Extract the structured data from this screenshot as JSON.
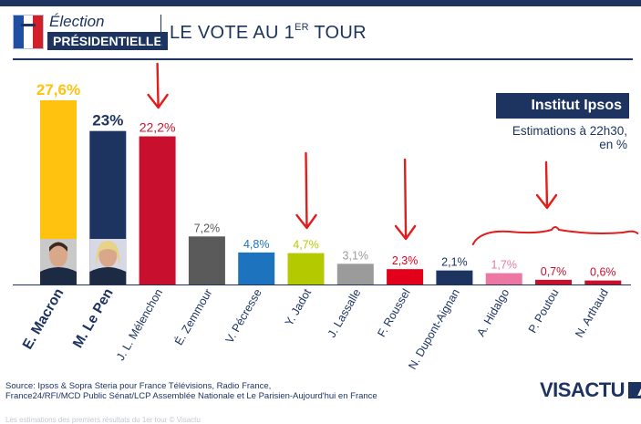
{
  "header": {
    "election": "Élection",
    "presidentielle": "PRÉSIDENTIELLE",
    "title_main": "LE VOTE AU 1",
    "title_sup": "ER",
    "title_end": " TOUR"
  },
  "institute": {
    "name": "Institut Ipsos",
    "estimate_line1": "Estimations à 22h30,",
    "estimate_line2": "en %"
  },
  "footer": {
    "source_line1": "Source: Ipsos & Sopra Steria pour France Télévisions, Radio France,",
    "source_line2": "France24/RFI/MCD Public Sénat/LCP Assemblée Nationale et Le Parisien-Aujourd'hui en France",
    "faint_line": "Les estimations des premiers résultats du 1er tour © Visactu",
    "brand": "VISACTU"
  },
  "chart_data": {
    "type": "bar",
    "title": "LE VOTE AU 1ER TOUR",
    "subtitle": "Estimations à 22h30, en %",
    "ylabel": "%",
    "ylim": [
      0,
      27.6
    ],
    "grid": false,
    "categories": [
      "E. Macron",
      "M. Le Pen",
      "J. L. Mélenchon",
      "É. Zemmour",
      "V. Pécresse",
      "Y. Jadot",
      "J. Lassalle",
      "F. Roussel",
      "N. Dupont-Aignan",
      "A. Hidalgo",
      "P. Poutou",
      "N. Arthaud"
    ],
    "values": [
      27.6,
      23,
      22.2,
      7.2,
      4.8,
      4.7,
      3.1,
      2.3,
      2.1,
      1.7,
      0.7,
      0.6
    ],
    "value_labels": [
      "27,6%",
      "23%",
      "22,2%",
      "7,2%",
      "4,8%",
      "4,7%",
      "3,1%",
      "2,3%",
      "2,1%",
      "1,7%",
      "0,7%",
      "0,6%"
    ],
    "bar_colors": [
      "#ffc20e",
      "#1d3461",
      "#c8102e",
      "#5a5a5a",
      "#1e73be",
      "#b5c900",
      "#9b9b9b",
      "#e2001a",
      "#1d3461",
      "#ec77a3",
      "#c8102e",
      "#c8102e"
    ],
    "label_colors": [
      "#ffc20e",
      "#1d3461",
      "#c8102e",
      "#5a5a5a",
      "#1e73be",
      "#b5c900",
      "#9b9b9b",
      "#e2001a",
      "#1d3461",
      "#ec77a3",
      "#c8102e",
      "#c8102e"
    ],
    "bold_categories": [
      "E. Macron",
      "M. Le Pen"
    ],
    "annotations": {
      "arrows_above": [
        "J. L. Mélenchon",
        "Y. Jadot",
        "F. Roussel",
        "P. Poutou"
      ],
      "brace_over": [
        "A. Hidalgo",
        "P. Poutou",
        "N. Arthaud"
      ],
      "arrow_color": "#e01e1e",
      "photos_on": [
        "E. Macron",
        "M. Le Pen"
      ]
    }
  }
}
